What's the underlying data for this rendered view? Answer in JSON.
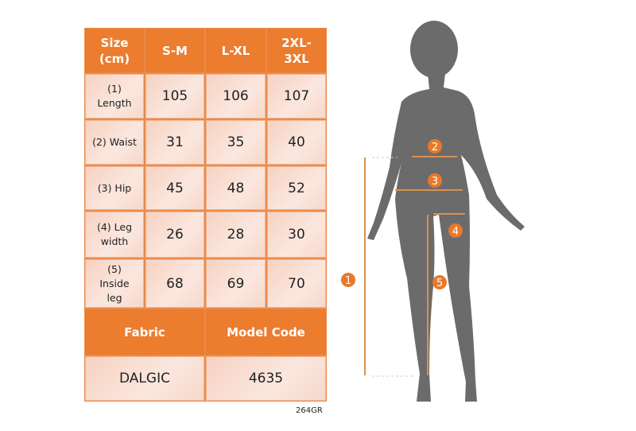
{
  "table": {
    "header": [
      "Size\n(cm)",
      "S-M",
      "L-XL",
      "2XL-\n3XL"
    ],
    "rows": [
      {
        "label": "(1)\nLength",
        "values": [
          "105",
          "106",
          "107"
        ]
      },
      {
        "label": "(2) Waist",
        "values": [
          "31",
          "35",
          "40"
        ]
      },
      {
        "label": "(3) Hip",
        "values": [
          "45",
          "48",
          "52"
        ]
      },
      {
        "label": "(4) Leg\nwidth",
        "values": [
          "26",
          "28",
          "30"
        ]
      },
      {
        "label": "(5)\nInside\nleg",
        "values": [
          "68",
          "69",
          "70"
        ]
      }
    ],
    "footer_header": [
      "Fabric",
      "Model Code"
    ],
    "footer_values": [
      "DALGIC",
      "4635"
    ]
  },
  "product_code": "264GR",
  "figure": {
    "markers": [
      "1",
      "2",
      "3",
      "4",
      "5"
    ],
    "accent_color": "#e8792b",
    "silhouette_color": "#6b6b6b"
  }
}
